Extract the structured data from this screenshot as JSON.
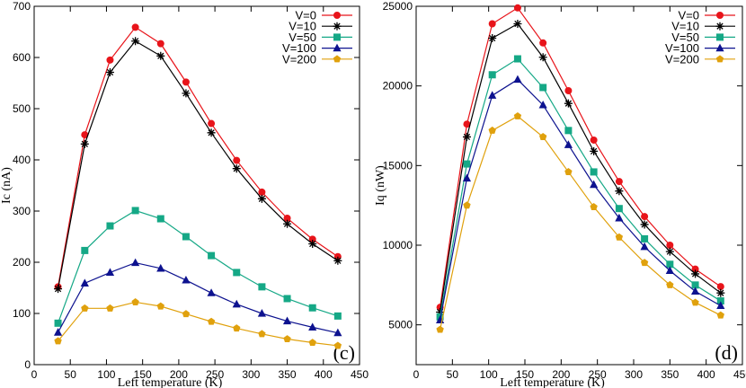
{
  "chart_data": [
    {
      "type": "line",
      "panel_label": "(c)",
      "xlabel": "Left temperature (K)",
      "ylabel": "Ic (nA)",
      "xlim": [
        0,
        450
      ],
      "ylim": [
        0,
        700
      ],
      "xticks": [
        0,
        50,
        100,
        150,
        200,
        250,
        300,
        350,
        400,
        450
      ],
      "yticks": [
        0,
        100,
        200,
        300,
        400,
        500,
        600,
        700
      ],
      "grid": false,
      "legend_position": "top-right",
      "x": [
        33,
        70,
        105,
        140,
        175,
        210,
        245,
        280,
        315,
        350,
        385,
        420
      ],
      "series": [
        {
          "name": "V=0",
          "color": "#e8141a",
          "marker": "circle",
          "values": [
            152,
            449,
            595,
            659,
            627,
            552,
            471,
            399,
            337,
            286,
            245,
            211
          ]
        },
        {
          "name": "V=10",
          "color": "#000000",
          "marker": "asterisk",
          "values": [
            148,
            431,
            571,
            632,
            603,
            530,
            453,
            383,
            324,
            275,
            236,
            203
          ]
        },
        {
          "name": "V=50",
          "color": "#15a886",
          "marker": "square",
          "values": [
            81,
            223,
            271,
            301,
            285,
            250,
            213,
            180,
            152,
            129,
            111,
            95
          ]
        },
        {
          "name": "V=100",
          "color": "#0d128f",
          "marker": "triangle",
          "values": [
            63,
            159,
            180,
            199,
            188,
            165,
            140,
            118,
            100,
            85,
            73,
            62
          ]
        },
        {
          "name": "V=200",
          "color": "#e0a10d",
          "marker": "pentagon",
          "values": [
            46,
            110,
            110,
            122,
            114,
            99,
            84,
            71,
            60,
            50,
            43,
            37
          ]
        }
      ]
    },
    {
      "type": "line",
      "panel_label": "(d)",
      "xlabel": "Left temperature (K)",
      "ylabel": "Iq (nW)",
      "xlim": [
        0,
        450
      ],
      "ylim": [
        2500,
        25000
      ],
      "xticks": [
        0,
        50,
        100,
        150,
        200,
        250,
        300,
        350,
        400,
        450
      ],
      "yticks": [
        5000,
        10000,
        15000,
        20000,
        25000
      ],
      "grid": false,
      "legend_position": "top-right",
      "x": [
        33,
        70,
        105,
        140,
        175,
        210,
        245,
        280,
        315,
        350,
        385,
        420
      ],
      "series": [
        {
          "name": "V=0",
          "color": "#e8141a",
          "marker": "circle",
          "values": [
            6100,
            17600,
            23900,
            24900,
            22700,
            19700,
            16600,
            14000,
            11800,
            10000,
            8500,
            7400
          ]
        },
        {
          "name": "V=10",
          "color": "#000000",
          "marker": "asterisk",
          "values": [
            5800,
            16800,
            23000,
            23900,
            21800,
            18900,
            15900,
            13400,
            11300,
            9600,
            8200,
            7000
          ]
        },
        {
          "name": "V=50",
          "color": "#15a886",
          "marker": "square",
          "values": [
            5500,
            15100,
            20700,
            21700,
            19900,
            17200,
            14600,
            12300,
            10400,
            8800,
            7500,
            6500
          ]
        },
        {
          "name": "V=100",
          "color": "#0d128f",
          "marker": "triangle",
          "values": [
            5300,
            14200,
            19400,
            20400,
            18800,
            16300,
            13800,
            11700,
            9900,
            8400,
            7100,
            6200
          ]
        },
        {
          "name": "V=200",
          "color": "#e0a10d",
          "marker": "pentagon",
          "values": [
            4700,
            12500,
            17200,
            18100,
            16800,
            14600,
            12400,
            10500,
            8900,
            7500,
            6400,
            5600
          ]
        }
      ]
    }
  ]
}
